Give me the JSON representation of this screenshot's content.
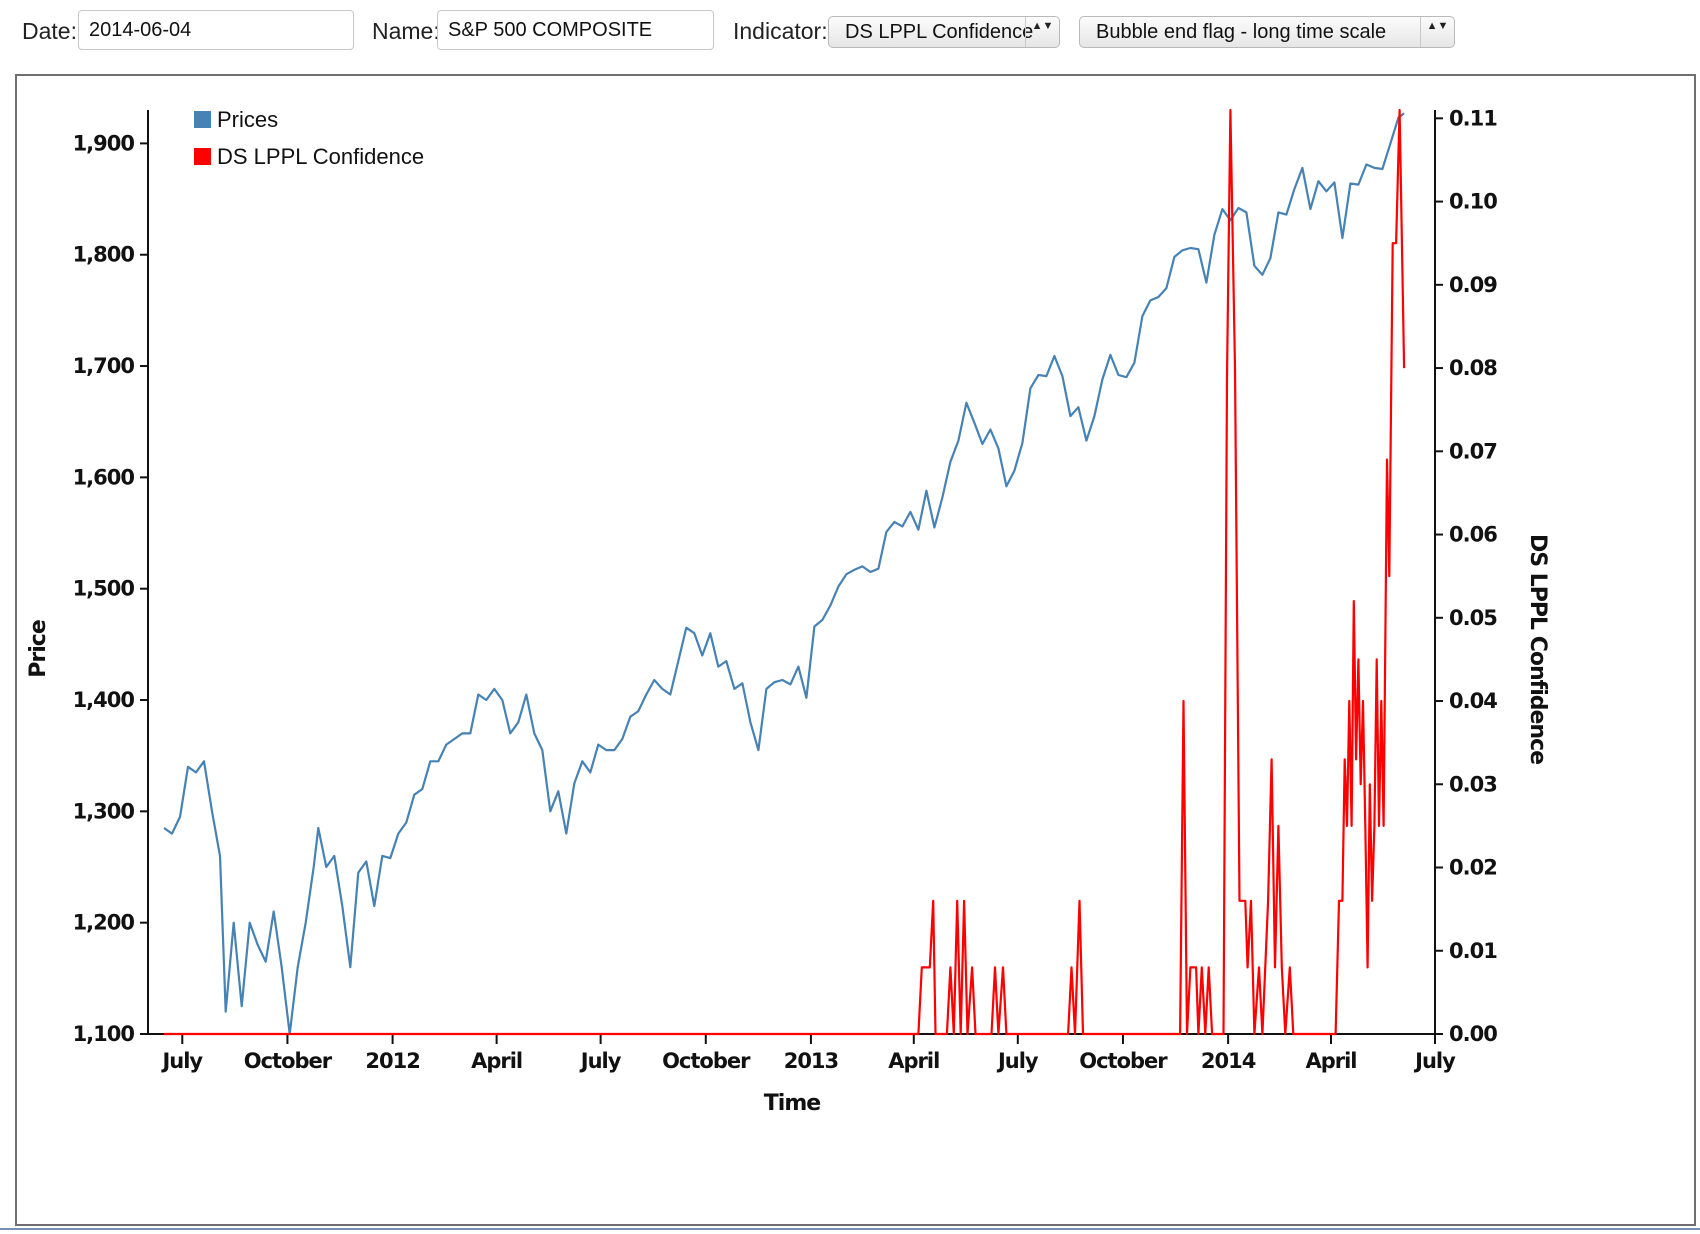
{
  "toolbar": {
    "date_label": "Date:",
    "date_value": "2014-06-04",
    "name_label": "Name:",
    "name_value": "S&P 500 COMPOSITE",
    "indicator_label": "Indicator:",
    "indicator_value": "DS LPPL Confidence",
    "scale_value": "Bubble end flag - long time scale",
    "select_arrows": "▲▼"
  },
  "colors": {
    "prices": "#4682b4",
    "confidence": "#ff0000",
    "axis": "#111111"
  },
  "chart_data": {
    "type": "line",
    "title": "",
    "xlabel": "Time",
    "ylabel": "Price",
    "y2label": "DS LPPL Confidence",
    "legend_position": "top-left",
    "grid": false,
    "x_tick_labels": [
      "July",
      "October",
      "2012",
      "April",
      "July",
      "October",
      "2013",
      "April",
      "July",
      "October",
      "2014",
      "April",
      "July"
    ],
    "y_ticks": [
      1100,
      1200,
      1300,
      1400,
      1500,
      1600,
      1700,
      1800,
      1900
    ],
    "y_tick_labels": [
      "1,100",
      "1,200",
      "1,300",
      "1,400",
      "1,500",
      "1,600",
      "1,700",
      "1,800",
      "1,900"
    ],
    "y2_ticks": [
      0.0,
      0.01,
      0.02,
      0.03,
      0.04,
      0.05,
      0.06,
      0.07,
      0.08,
      0.09,
      0.1,
      0.11
    ],
    "y2_tick_labels": [
      "0.00",
      "0.01",
      "0.02",
      "0.03",
      "0.04",
      "0.05",
      "0.06",
      "0.07",
      "0.08",
      "0.09",
      "0.10",
      "0.11"
    ],
    "ylim": [
      1100,
      1930
    ],
    "y2lim": [
      0,
      0.111
    ],
    "xlim": [
      "2011-06-01",
      "2014-07-01"
    ],
    "series": [
      {
        "name": "Prices",
        "axis": "left",
        "points": [
          [
            "2011-06-15",
            1285
          ],
          [
            "2011-06-22",
            1280
          ],
          [
            "2011-06-29",
            1295
          ],
          [
            "2011-07-06",
            1340
          ],
          [
            "2011-07-13",
            1335
          ],
          [
            "2011-07-20",
            1345
          ],
          [
            "2011-07-27",
            1300
          ],
          [
            "2011-08-03",
            1260
          ],
          [
            "2011-08-08",
            1120
          ],
          [
            "2011-08-15",
            1200
          ],
          [
            "2011-08-22",
            1125
          ],
          [
            "2011-08-29",
            1200
          ],
          [
            "2011-09-05",
            1180
          ],
          [
            "2011-09-12",
            1165
          ],
          [
            "2011-09-19",
            1210
          ],
          [
            "2011-09-26",
            1160
          ],
          [
            "2011-10-03",
            1100
          ],
          [
            "2011-10-10",
            1160
          ],
          [
            "2011-10-17",
            1200
          ],
          [
            "2011-10-24",
            1250
          ],
          [
            "2011-10-28",
            1285
          ],
          [
            "2011-11-04",
            1250
          ],
          [
            "2011-11-11",
            1260
          ],
          [
            "2011-11-18",
            1215
          ],
          [
            "2011-11-25",
            1160
          ],
          [
            "2011-12-02",
            1245
          ],
          [
            "2011-12-09",
            1255
          ],
          [
            "2011-12-16",
            1215
          ],
          [
            "2011-12-23",
            1260
          ],
          [
            "2011-12-30",
            1258
          ],
          [
            "2012-01-06",
            1280
          ],
          [
            "2012-01-13",
            1290
          ],
          [
            "2012-01-20",
            1315
          ],
          [
            "2012-01-27",
            1320
          ],
          [
            "2012-02-03",
            1345
          ],
          [
            "2012-02-10",
            1345
          ],
          [
            "2012-02-17",
            1360
          ],
          [
            "2012-02-24",
            1365
          ],
          [
            "2012-03-02",
            1370
          ],
          [
            "2012-03-09",
            1370
          ],
          [
            "2012-03-16",
            1405
          ],
          [
            "2012-03-23",
            1400
          ],
          [
            "2012-03-30",
            1410
          ],
          [
            "2012-04-06",
            1400
          ],
          [
            "2012-04-13",
            1370
          ],
          [
            "2012-04-20",
            1380
          ],
          [
            "2012-04-27",
            1405
          ],
          [
            "2012-05-04",
            1370
          ],
          [
            "2012-05-11",
            1355
          ],
          [
            "2012-05-18",
            1300
          ],
          [
            "2012-05-25",
            1318
          ],
          [
            "2012-06-01",
            1280
          ],
          [
            "2012-06-08",
            1325
          ],
          [
            "2012-06-15",
            1345
          ],
          [
            "2012-06-22",
            1335
          ],
          [
            "2012-06-29",
            1360
          ],
          [
            "2012-07-06",
            1355
          ],
          [
            "2012-07-13",
            1355
          ],
          [
            "2012-07-20",
            1365
          ],
          [
            "2012-07-27",
            1385
          ],
          [
            "2012-08-03",
            1390
          ],
          [
            "2012-08-10",
            1405
          ],
          [
            "2012-08-17",
            1418
          ],
          [
            "2012-08-24",
            1410
          ],
          [
            "2012-08-31",
            1405
          ],
          [
            "2012-09-07",
            1435
          ],
          [
            "2012-09-14",
            1465
          ],
          [
            "2012-09-21",
            1460
          ],
          [
            "2012-09-28",
            1440
          ],
          [
            "2012-10-05",
            1460
          ],
          [
            "2012-10-12",
            1430
          ],
          [
            "2012-10-19",
            1435
          ],
          [
            "2012-10-26",
            1410
          ],
          [
            "2012-11-02",
            1415
          ],
          [
            "2012-11-09",
            1380
          ],
          [
            "2012-11-16",
            1355
          ],
          [
            "2012-11-23",
            1410
          ],
          [
            "2012-11-30",
            1416
          ],
          [
            "2012-12-07",
            1418
          ],
          [
            "2012-12-14",
            1414
          ],
          [
            "2012-12-21",
            1430
          ],
          [
            "2012-12-28",
            1402
          ],
          [
            "2013-01-04",
            1466
          ],
          [
            "2013-01-11",
            1472
          ],
          [
            "2013-01-18",
            1485
          ],
          [
            "2013-01-25",
            1502
          ],
          [
            "2013-02-01",
            1513
          ],
          [
            "2013-02-08",
            1517
          ],
          [
            "2013-02-15",
            1520
          ],
          [
            "2013-02-22",
            1515
          ],
          [
            "2013-03-01",
            1518
          ],
          [
            "2013-03-08",
            1551
          ],
          [
            "2013-03-15",
            1560
          ],
          [
            "2013-03-22",
            1556
          ],
          [
            "2013-03-29",
            1569
          ],
          [
            "2013-04-05",
            1553
          ],
          [
            "2013-04-12",
            1588
          ],
          [
            "2013-04-19",
            1555
          ],
          [
            "2013-04-26",
            1582
          ],
          [
            "2013-05-03",
            1614
          ],
          [
            "2013-05-10",
            1633
          ],
          [
            "2013-05-17",
            1667
          ],
          [
            "2013-05-24",
            1649
          ],
          [
            "2013-05-31",
            1630
          ],
          [
            "2013-06-07",
            1643
          ],
          [
            "2013-06-14",
            1626
          ],
          [
            "2013-06-21",
            1592
          ],
          [
            "2013-06-28",
            1606
          ],
          [
            "2013-07-05",
            1631
          ],
          [
            "2013-07-12",
            1680
          ],
          [
            "2013-07-19",
            1692
          ],
          [
            "2013-07-26",
            1691
          ],
          [
            "2013-08-02",
            1709
          ],
          [
            "2013-08-09",
            1691
          ],
          [
            "2013-08-16",
            1655
          ],
          [
            "2013-08-23",
            1663
          ],
          [
            "2013-08-30",
            1633
          ],
          [
            "2013-09-06",
            1655
          ],
          [
            "2013-09-13",
            1688
          ],
          [
            "2013-09-20",
            1710
          ],
          [
            "2013-09-27",
            1692
          ],
          [
            "2013-10-04",
            1690
          ],
          [
            "2013-10-11",
            1703
          ],
          [
            "2013-10-18",
            1745
          ],
          [
            "2013-10-25",
            1759
          ],
          [
            "2013-11-01",
            1762
          ],
          [
            "2013-11-08",
            1770
          ],
          [
            "2013-11-15",
            1798
          ],
          [
            "2013-11-22",
            1804
          ],
          [
            "2013-11-29",
            1806
          ],
          [
            "2013-12-06",
            1805
          ],
          [
            "2013-12-13",
            1775
          ],
          [
            "2013-12-20",
            1818
          ],
          [
            "2013-12-27",
            1841
          ],
          [
            "2014-01-03",
            1831
          ],
          [
            "2014-01-10",
            1842
          ],
          [
            "2014-01-17",
            1838
          ],
          [
            "2014-01-24",
            1790
          ],
          [
            "2014-01-31",
            1782
          ],
          [
            "2014-02-07",
            1797
          ],
          [
            "2014-02-14",
            1838
          ],
          [
            "2014-02-21",
            1836
          ],
          [
            "2014-02-28",
            1859
          ],
          [
            "2014-03-07",
            1878
          ],
          [
            "2014-03-14",
            1841
          ],
          [
            "2014-03-21",
            1866
          ],
          [
            "2014-03-28",
            1857
          ],
          [
            "2014-04-04",
            1865
          ],
          [
            "2014-04-11",
            1815
          ],
          [
            "2014-04-18",
            1864
          ],
          [
            "2014-04-25",
            1863
          ],
          [
            "2014-05-02",
            1881
          ],
          [
            "2014-05-09",
            1878
          ],
          [
            "2014-05-16",
            1877
          ],
          [
            "2014-05-23",
            1900
          ],
          [
            "2014-05-30",
            1923
          ],
          [
            "2014-06-04",
            1927
          ]
        ]
      },
      {
        "name": "DS LPPL Confidence",
        "axis": "right",
        "points": [
          [
            "2011-06-15",
            0.0
          ],
          [
            "2013-04-05",
            0.0
          ],
          [
            "2013-04-08",
            0.008
          ],
          [
            "2013-04-15",
            0.008
          ],
          [
            "2013-04-18",
            0.016
          ],
          [
            "2013-04-20",
            0.0
          ],
          [
            "2013-04-30",
            0.0
          ],
          [
            "2013-05-03",
            0.008
          ],
          [
            "2013-05-06",
            0.0
          ],
          [
            "2013-05-09",
            0.016
          ],
          [
            "2013-05-12",
            0.0
          ],
          [
            "2013-05-15",
            0.016
          ],
          [
            "2013-05-18",
            0.0
          ],
          [
            "2013-05-22",
            0.008
          ],
          [
            "2013-05-25",
            0.0
          ],
          [
            "2013-06-08",
            0.0
          ],
          [
            "2013-06-11",
            0.008
          ],
          [
            "2013-06-14",
            0.0
          ],
          [
            "2013-06-18",
            0.008
          ],
          [
            "2013-06-21",
            0.0
          ],
          [
            "2013-08-14",
            0.0
          ],
          [
            "2013-08-17",
            0.008
          ],
          [
            "2013-08-20",
            0.0
          ],
          [
            "2013-08-24",
            0.016
          ],
          [
            "2013-08-27",
            0.0
          ],
          [
            "2013-11-20",
            0.0
          ],
          [
            "2013-11-23",
            0.04
          ],
          [
            "2013-11-26",
            0.0
          ],
          [
            "2013-11-29",
            0.008
          ],
          [
            "2013-12-04",
            0.008
          ],
          [
            "2013-12-06",
            0.0
          ],
          [
            "2013-12-09",
            0.008
          ],
          [
            "2013-12-12",
            0.0
          ],
          [
            "2013-12-15",
            0.008
          ],
          [
            "2013-12-18",
            0.0
          ],
          [
            "2013-12-28",
            0.0
          ],
          [
            "2013-12-31",
            0.079
          ],
          [
            "2014-01-03",
            0.111
          ],
          [
            "2014-01-07",
            0.08
          ],
          [
            "2014-01-11",
            0.016
          ],
          [
            "2014-01-16",
            0.016
          ],
          [
            "2014-01-18",
            0.008
          ],
          [
            "2014-01-21",
            0.016
          ],
          [
            "2014-01-24",
            0.0
          ],
          [
            "2014-01-28",
            0.008
          ],
          [
            "2014-01-31",
            0.0
          ],
          [
            "2014-02-05",
            0.016
          ],
          [
            "2014-02-08",
            0.033
          ],
          [
            "2014-02-11",
            0.008
          ],
          [
            "2014-02-14",
            0.025
          ],
          [
            "2014-02-17",
            0.008
          ],
          [
            "2014-02-20",
            0.0
          ],
          [
            "2014-02-24",
            0.008
          ],
          [
            "2014-02-27",
            0.0
          ],
          [
            "2014-04-05",
            0.0
          ],
          [
            "2014-04-08",
            0.016
          ],
          [
            "2014-04-11",
            0.016
          ],
          [
            "2014-04-13",
            0.033
          ],
          [
            "2014-04-15",
            0.025
          ],
          [
            "2014-04-17",
            0.04
          ],
          [
            "2014-04-19",
            0.025
          ],
          [
            "2014-04-21",
            0.052
          ],
          [
            "2014-04-23",
            0.033
          ],
          [
            "2014-04-25",
            0.045
          ],
          [
            "2014-04-27",
            0.03
          ],
          [
            "2014-04-29",
            0.04
          ],
          [
            "2014-05-01",
            0.025
          ],
          [
            "2014-05-03",
            0.008
          ],
          [
            "2014-05-05",
            0.03
          ],
          [
            "2014-05-07",
            0.016
          ],
          [
            "2014-05-09",
            0.025
          ],
          [
            "2014-05-11",
            0.045
          ],
          [
            "2014-05-13",
            0.025
          ],
          [
            "2014-05-15",
            0.04
          ],
          [
            "2014-05-17",
            0.025
          ],
          [
            "2014-05-20",
            0.069
          ],
          [
            "2014-05-22",
            0.055
          ],
          [
            "2014-05-25",
            0.095
          ],
          [
            "2014-05-28",
            0.095
          ],
          [
            "2014-05-31",
            0.111
          ],
          [
            "2014-06-04",
            0.08
          ]
        ]
      }
    ]
  }
}
